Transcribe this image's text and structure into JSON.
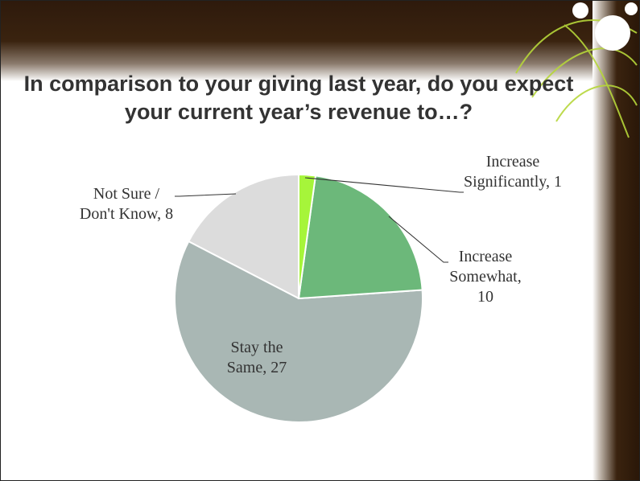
{
  "chart_data": {
    "type": "pie",
    "title": "In comparison to your giving last year, do you expect your current year’s revenue to…?",
    "categories": [
      "Increase Significantly",
      "Increase Somewhat",
      "Stay the Same",
      "Not Sure / Don't Know"
    ],
    "values": [
      1,
      10,
      27,
      8
    ],
    "value_labels": [
      ", 1",
      ", 10",
      ", 27",
      ", 8"
    ],
    "colors": [
      "#a6f53a",
      "#6cb87a",
      "#a9b7b4",
      "#dcdcdc"
    ]
  }
}
